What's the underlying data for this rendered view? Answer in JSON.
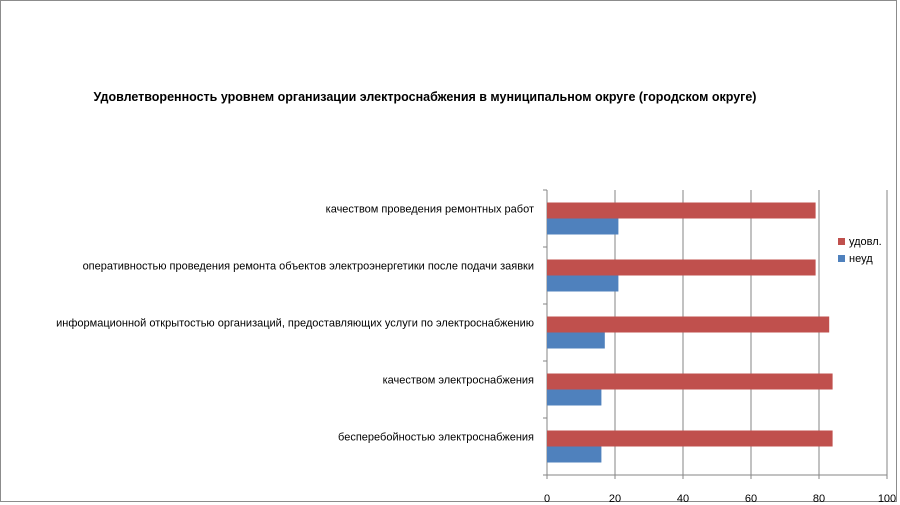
{
  "chart_data": {
    "type": "bar",
    "orientation": "horizontal",
    "title": "Удовлетворенность уровнем организации электроснабжения в муниципальном округе (городском округе)",
    "categories": [
      "качеством проведения ремонтных работ",
      "оперативностью проведения ремонта объектов электроэнергетики после подачи заявки",
      "информационной открытостью организаций, предоставляющих услуги по электроснабжению",
      "качеством электроснабжения",
      "бесперебойностью электроснабжения"
    ],
    "series": [
      {
        "name": "удовл.",
        "color": "#c0504d",
        "values": [
          79,
          79,
          83,
          84,
          84
        ]
      },
      {
        "name": "неуд",
        "color": "#4f81bd",
        "values": [
          21,
          21,
          17,
          16,
          16
        ]
      }
    ],
    "xlim": [
      0,
      100
    ],
    "xticks": [
      "0",
      "20",
      "40",
      "60",
      "80",
      "100"
    ],
    "grid": true,
    "legend_position": "right"
  }
}
